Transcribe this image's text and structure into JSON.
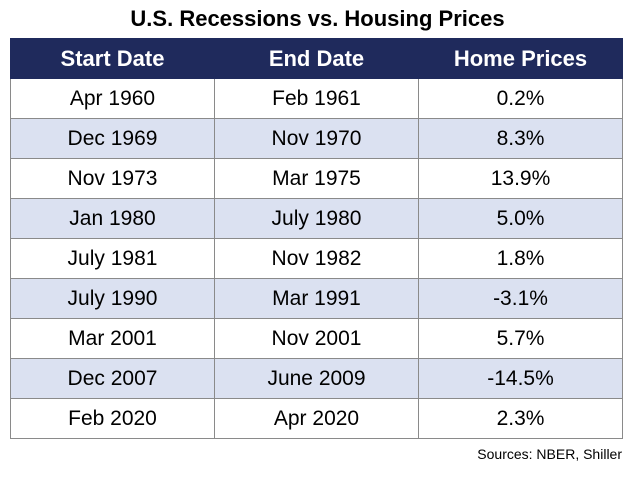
{
  "title": "U.S. Recessions vs. Housing Prices",
  "table": {
    "headers": [
      "Start Date",
      "End Date",
      "Home Prices"
    ],
    "rows": [
      [
        "Apr 1960",
        "Feb 1961",
        "0.2%"
      ],
      [
        "Dec 1969",
        "Nov 1970",
        "8.3%"
      ],
      [
        "Nov 1973",
        "Mar 1975",
        "13.9%"
      ],
      [
        "Jan 1980",
        "July 1980",
        "5.0%"
      ],
      [
        "July 1981",
        "Nov 1982",
        "1.8%"
      ],
      [
        "July 1990",
        "Mar 1991",
        "-3.1%"
      ],
      [
        "Mar 2001",
        "Nov 2001",
        "5.7%"
      ],
      [
        "Dec 2007",
        "June 2009",
        "-14.5%"
      ],
      [
        "Feb 2020",
        "Apr 2020",
        "2.3%"
      ]
    ]
  },
  "source": "Sources: NBER, Shiller",
  "colors": {
    "header_bg": "#1f2a5c",
    "header_text": "#ffffff",
    "alt_row_bg": "#dbe1f1"
  }
}
